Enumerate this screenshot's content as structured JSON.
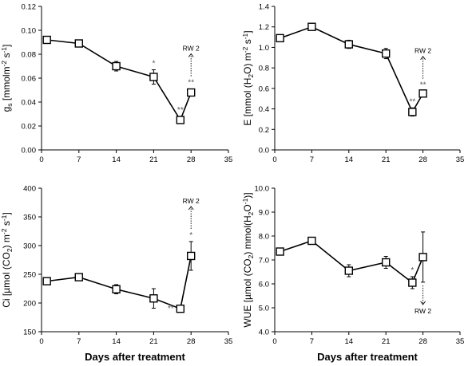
{
  "chart_data": [
    {
      "type": "line",
      "id": "gs",
      "title": "",
      "ylabel_parts": [
        {
          "t": "g",
          "s": "n"
        },
        {
          "t": "s",
          "s": "sub"
        },
        {
          "t": " [mmolm",
          "s": "n"
        },
        {
          "t": "-2",
          "s": "sup"
        },
        {
          "t": " s",
          "s": "n"
        },
        {
          "t": "-1",
          "s": "sup"
        },
        {
          "t": "]",
          "s": "n"
        }
      ],
      "xlabel": "",
      "xlim": [
        0,
        35
      ],
      "xticks": [
        0,
        7,
        14,
        21,
        28,
        35
      ],
      "ylim": [
        0,
        0.12
      ],
      "yticks": [
        "0.00",
        "0.02",
        "0.04",
        "0.06",
        "0.08",
        "0.10",
        "0.12"
      ],
      "grid": false,
      "series": [
        {
          "x": [
            1,
            7,
            14,
            21,
            26,
            28
          ],
          "y": [
            0.092,
            0.089,
            0.07,
            0.061,
            0.025,
            0.048
          ],
          "err": [
            0.002,
            0.002,
            0.004,
            0.006,
            0.003,
            0.003
          ]
        }
      ],
      "sig": [
        {
          "x": 21,
          "label": "*",
          "pos": "above"
        },
        {
          "x": 26,
          "label": "**",
          "pos": "above"
        },
        {
          "x": 28,
          "label": "**",
          "pos": "above"
        }
      ],
      "rw": {
        "x": 28,
        "label": "RW 2",
        "dir": "up"
      }
    },
    {
      "type": "line",
      "id": "E",
      "title": "",
      "ylabel_parts": [
        {
          "t": "E [mmol (H",
          "s": "n"
        },
        {
          "t": "2",
          "s": "sub"
        },
        {
          "t": "O) m",
          "s": "n"
        },
        {
          "t": "-2",
          "s": "sup"
        },
        {
          "t": " s",
          "s": "n"
        },
        {
          "t": "-1",
          "s": "sup"
        },
        {
          "t": "]",
          "s": "n"
        }
      ],
      "xlabel": "",
      "xlim": [
        0,
        35
      ],
      "xticks": [
        0,
        7,
        14,
        21,
        28,
        35
      ],
      "ylim": [
        0,
        1.4
      ],
      "yticks": [
        "0.0",
        "0.2",
        "0.4",
        "0.6",
        "0.8",
        "1.0",
        "1.2",
        "1.4"
      ],
      "grid": false,
      "series": [
        {
          "x": [
            1,
            7,
            14,
            21,
            26,
            28
          ],
          "y": [
            1.09,
            1.2,
            1.03,
            0.94,
            0.37,
            0.55
          ],
          "err": [
            0.02,
            0.03,
            0.04,
            0.05,
            0.04,
            0.02
          ]
        }
      ],
      "sig": [
        {
          "x": 26,
          "label": "**",
          "pos": "above"
        },
        {
          "x": 28,
          "label": "**",
          "pos": "above"
        }
      ],
      "rw": {
        "x": 28,
        "label": "RW 2",
        "dir": "up"
      }
    },
    {
      "type": "line",
      "id": "Ci",
      "title": "",
      "ylabel_parts": [
        {
          "t": "Ci [µmol (CO",
          "s": "n"
        },
        {
          "t": "2",
          "s": "sub"
        },
        {
          "t": ") m",
          "s": "n"
        },
        {
          "t": "-2",
          "s": "sup"
        },
        {
          "t": " s",
          "s": "n"
        },
        {
          "t": "-1",
          "s": "sup"
        },
        {
          "t": "]",
          "s": "n"
        }
      ],
      "xlabel": "Days after treatment",
      "xlim": [
        0,
        35
      ],
      "xticks": [
        0,
        7,
        14,
        21,
        28,
        35
      ],
      "ylim": [
        150,
        400
      ],
      "yticks": [
        "150",
        "200",
        "250",
        "300",
        "350",
        "400"
      ],
      "grid": false,
      "series": [
        {
          "x": [
            1,
            7,
            14,
            21,
            26,
            28
          ],
          "y": [
            238,
            245,
            224,
            208,
            190,
            282
          ],
          "err": [
            3,
            3,
            8,
            17,
            3,
            25
          ]
        }
      ],
      "sig": [
        {
          "x": 26,
          "label": "**",
          "pos": "left"
        },
        {
          "x": 28,
          "label": "*",
          "pos": "above"
        }
      ],
      "rw": {
        "x": 28,
        "label": "RW 2",
        "dir": "up"
      }
    },
    {
      "type": "line",
      "id": "WUE",
      "title": "",
      "ylabel_parts": [
        {
          "t": "WUE [µmol (CO",
          "s": "n"
        },
        {
          "t": "2",
          "s": "sub"
        },
        {
          "t": ") mmol(H",
          "s": "n"
        },
        {
          "t": "2",
          "s": "sub"
        },
        {
          "t": "O",
          "s": "n"
        },
        {
          "t": "-1",
          "s": "sup"
        },
        {
          "t": ")]",
          "s": "n"
        }
      ],
      "xlabel": "Days after treatment",
      "xlim": [
        0,
        35
      ],
      "xticks": [
        0,
        7,
        14,
        21,
        28,
        35
      ],
      "ylim": [
        4,
        10
      ],
      "yticks": [
        "4.0",
        "5.0",
        "6.0",
        "7.0",
        "8.0",
        "9.0",
        "10.0"
      ],
      "grid": false,
      "series": [
        {
          "x": [
            1,
            7,
            14,
            21,
            26,
            28
          ],
          "y": [
            7.35,
            7.8,
            6.55,
            6.9,
            6.05,
            7.12
          ],
          "err": [
            0.05,
            0.12,
            0.25,
            0.25,
            0.25,
            1.05
          ]
        }
      ],
      "sig": [
        {
          "x": 26,
          "label": "*",
          "pos": "above"
        }
      ],
      "rw": {
        "x": 28,
        "label": "RW 2",
        "dir": "down"
      }
    }
  ]
}
